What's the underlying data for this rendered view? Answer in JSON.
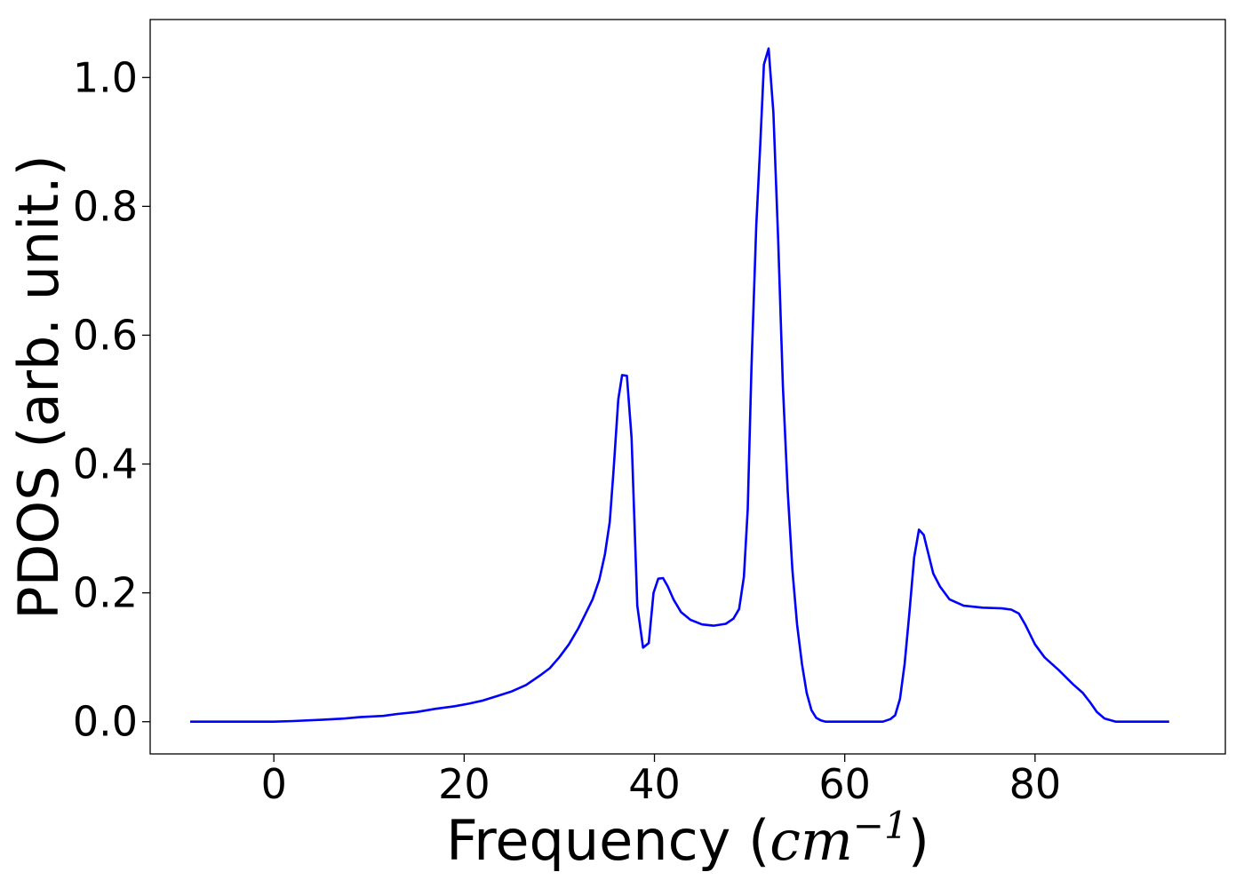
{
  "chart_data": {
    "type": "line",
    "xlabel_text": "Frequency (",
    "xlabel_unit": "cm",
    "xlabel_exp": "−1",
    "xlabel_close": ")",
    "ylabel": "PDOS (arb. unit.)",
    "xlim": [
      -13,
      100
    ],
    "ylim": [
      -0.05,
      1.09
    ],
    "xticks": [
      0,
      20,
      40,
      60,
      80
    ],
    "xtick_labels": [
      "0",
      "20",
      "40",
      "60",
      "80"
    ],
    "yticks": [
      0.0,
      0.2,
      0.4,
      0.6,
      0.8,
      1.0
    ],
    "ytick_labels": [
      "0.0",
      "0.2",
      "0.4",
      "0.6",
      "0.8",
      "1.0"
    ],
    "grid": false,
    "legend": false,
    "series": [
      {
        "color": "#0000ff",
        "x": [
          -8.8,
          0,
          2,
          5,
          7.5,
          9,
          11.5,
          13,
          15,
          17,
          19,
          20.5,
          22,
          23.5,
          25,
          26.5,
          28,
          29,
          30,
          31,
          32,
          33,
          33.5,
          34.2,
          34.8,
          35.3,
          35.7,
          36.2,
          36.6,
          37.1,
          37.6,
          38.2,
          38.8,
          39.4,
          39.9,
          40.4,
          40.9,
          41.4,
          42,
          42.8,
          43.8,
          45,
          46.2,
          47.5,
          48.3,
          48.9,
          49.4,
          49.8,
          50.2,
          50.7,
          51.1,
          51.5,
          52,
          52.5,
          53,
          53.5,
          54,
          54.5,
          55,
          55.5,
          56,
          56.5,
          57,
          57.5,
          58,
          58.5,
          59.2,
          60,
          62,
          64,
          64.8,
          65.3,
          65.8,
          66.3,
          66.8,
          67.3,
          67.8,
          68.3,
          68.8,
          69.3,
          70,
          71,
          72.5,
          74.5,
          76.5,
          77.5,
          78.3,
          79,
          80,
          81,
          82.5,
          84,
          85,
          85.8,
          86.5,
          87.3,
          88.5,
          90,
          92,
          94.1
        ],
        "y": [
          0,
          0,
          0.001,
          0.003,
          0.005,
          0.007,
          0.009,
          0.012,
          0.015,
          0.02,
          0.024,
          0.028,
          0.033,
          0.04,
          0.047,
          0.057,
          0.072,
          0.083,
          0.1,
          0.12,
          0.145,
          0.175,
          0.19,
          0.22,
          0.26,
          0.31,
          0.39,
          0.5,
          0.538,
          0.537,
          0.44,
          0.18,
          0.115,
          0.122,
          0.2,
          0.222,
          0.223,
          0.21,
          0.19,
          0.17,
          0.158,
          0.151,
          0.149,
          0.152,
          0.16,
          0.175,
          0.225,
          0.33,
          0.55,
          0.77,
          0.89,
          1.02,
          1.045,
          0.945,
          0.75,
          0.52,
          0.36,
          0.235,
          0.15,
          0.09,
          0.045,
          0.018,
          0.006,
          0.002,
          0,
          0,
          0,
          0,
          0,
          0,
          0.004,
          0.01,
          0.035,
          0.09,
          0.17,
          0.255,
          0.298,
          0.29,
          0.26,
          0.23,
          0.21,
          0.19,
          0.18,
          0.177,
          0.176,
          0.174,
          0.168,
          0.15,
          0.12,
          0.1,
          0.08,
          0.058,
          0.045,
          0.03,
          0.015,
          0.005,
          0,
          0,
          0,
          0
        ]
      }
    ]
  }
}
